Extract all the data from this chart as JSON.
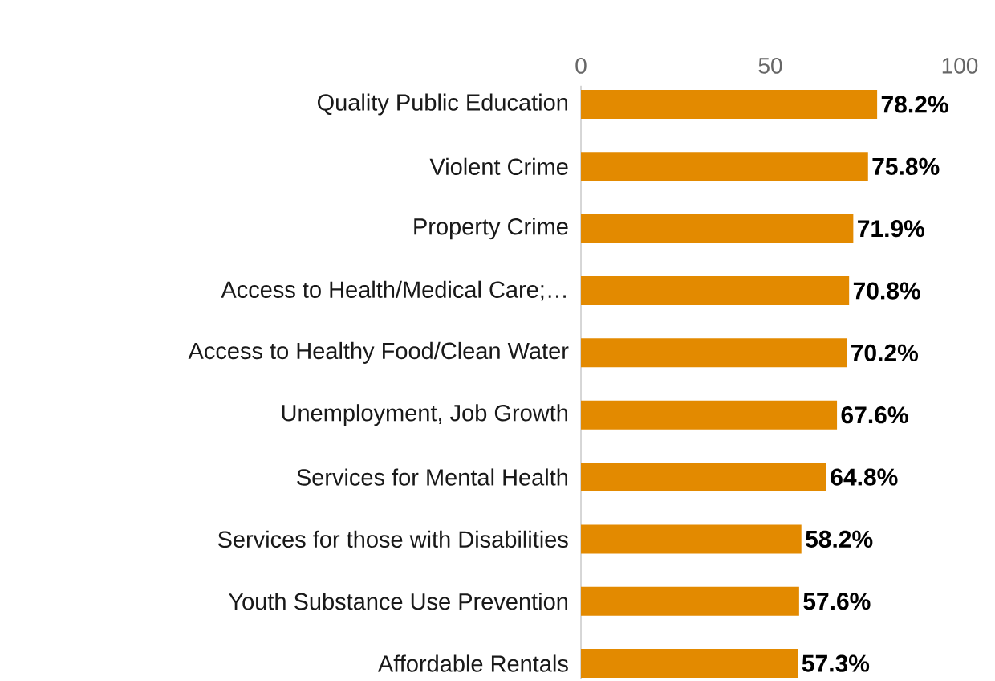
{
  "chart_data": {
    "type": "bar",
    "orientation": "horizontal",
    "categories": [
      "Quality Public Education",
      "Violent Crime",
      "Property Crime",
      "Access to Health/Medical Care;…",
      "Access to Healthy Food/Clean Water",
      "Unemployment, Job Growth",
      "Services for Mental Health",
      "Services for those with Disabilities",
      "Youth Substance Use Prevention",
      "Affordable Rentals"
    ],
    "values": [
      78.2,
      75.8,
      71.9,
      70.8,
      70.2,
      67.6,
      64.8,
      58.2,
      57.6,
      57.3
    ],
    "value_labels": [
      "78.2%",
      "75.8%",
      "71.9%",
      "70.8%",
      "70.2%",
      "67.6%",
      "64.8%",
      "58.2%",
      "57.6%",
      "57.3%"
    ],
    "color": "#e38a00",
    "xlim": [
      0,
      100
    ],
    "xticks": [
      0,
      50,
      100
    ]
  }
}
